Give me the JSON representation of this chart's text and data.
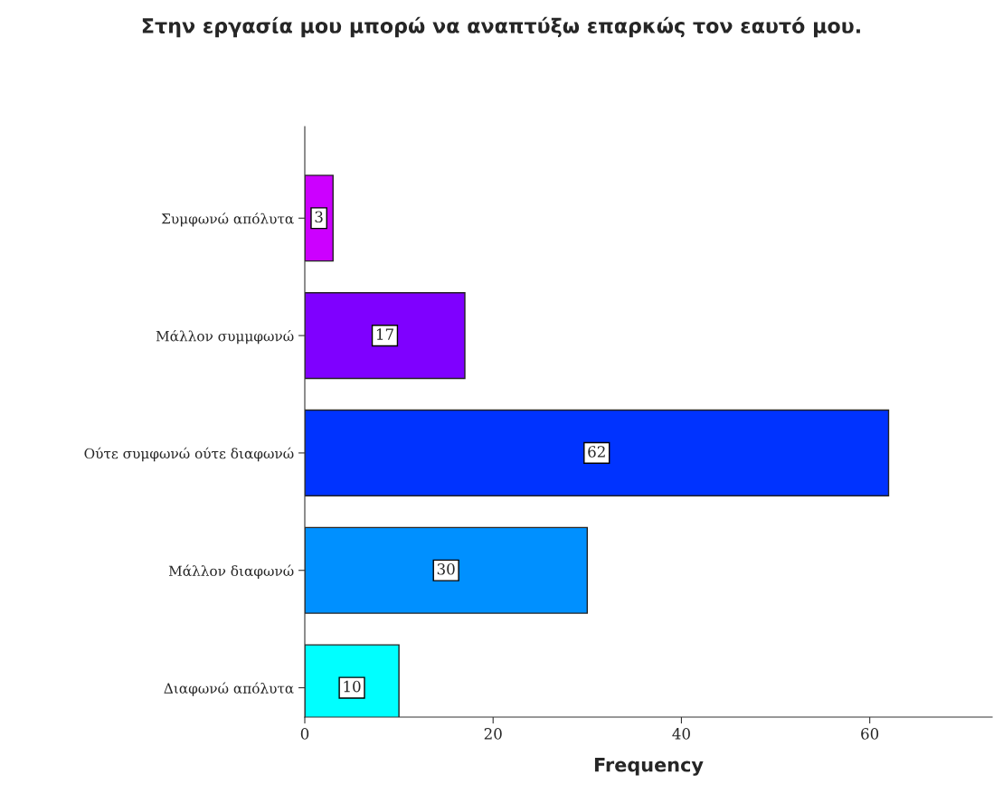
{
  "chart_data": {
    "type": "bar",
    "orientation": "horizontal",
    "title": "Στην εργασία μου μπορώ να αναπτύξω επαρκώς τον εαυτό μου.",
    "xlabel": "Frequency",
    "categories": [
      "Συμφωνώ απόλυτα",
      "Μάλλον συμμφωνώ",
      "Ούτε συμφωνώ ούτε διαφωνώ",
      "Μάλλον διαφωνώ",
      "Διαφωνώ απόλυτα"
    ],
    "values": [
      3,
      17,
      62,
      30,
      10
    ],
    "colors": [
      "#cc00ff",
      "#7f00ff",
      "#0033ff",
      "#0090ff",
      "#00ffff"
    ],
    "xlim": [
      0,
      73
    ],
    "xticks": [
      0,
      20,
      40,
      60
    ],
    "data_labels": true,
    "grid": false,
    "legend": false
  }
}
